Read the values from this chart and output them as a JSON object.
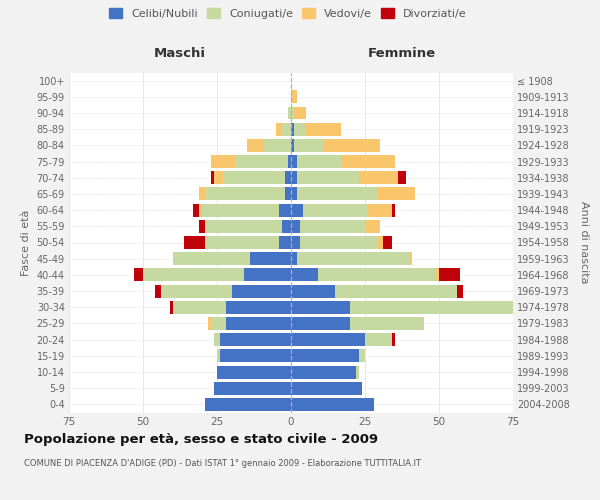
{
  "age_groups": [
    "0-4",
    "5-9",
    "10-14",
    "15-19",
    "20-24",
    "25-29",
    "30-34",
    "35-39",
    "40-44",
    "45-49",
    "50-54",
    "55-59",
    "60-64",
    "65-69",
    "70-74",
    "75-79",
    "80-84",
    "85-89",
    "90-94",
    "95-99",
    "100+"
  ],
  "birth_years": [
    "2004-2008",
    "1999-2003",
    "1994-1998",
    "1989-1993",
    "1984-1988",
    "1979-1983",
    "1974-1978",
    "1969-1973",
    "1964-1968",
    "1959-1963",
    "1954-1958",
    "1949-1953",
    "1944-1948",
    "1939-1943",
    "1934-1938",
    "1929-1933",
    "1924-1928",
    "1919-1923",
    "1914-1918",
    "1909-1913",
    "≤ 1908"
  ],
  "male_celibe": [
    29,
    26,
    25,
    24,
    24,
    22,
    22,
    20,
    16,
    14,
    4,
    3,
    4,
    2,
    2,
    1,
    0,
    0,
    0,
    0,
    0
  ],
  "male_coniugato": [
    0,
    0,
    0,
    1,
    2,
    5,
    18,
    24,
    34,
    26,
    25,
    26,
    26,
    27,
    21,
    18,
    9,
    3,
    1,
    0,
    0
  ],
  "male_vedovo": [
    0,
    0,
    0,
    0,
    0,
    1,
    0,
    0,
    0,
    0,
    0,
    0,
    1,
    2,
    3,
    8,
    6,
    2,
    0,
    0,
    0
  ],
  "male_divorziato": [
    0,
    0,
    0,
    0,
    0,
    0,
    1,
    2,
    3,
    0,
    7,
    2,
    2,
    0,
    1,
    0,
    0,
    0,
    0,
    0,
    0
  ],
  "female_nubile": [
    28,
    24,
    22,
    23,
    25,
    20,
    20,
    15,
    9,
    2,
    3,
    3,
    4,
    2,
    2,
    2,
    1,
    1,
    0,
    0,
    0
  ],
  "female_coniugata": [
    0,
    0,
    1,
    2,
    9,
    25,
    55,
    41,
    40,
    38,
    26,
    22,
    22,
    27,
    21,
    15,
    10,
    4,
    1,
    0,
    0
  ],
  "female_vedova": [
    0,
    0,
    0,
    0,
    0,
    0,
    1,
    0,
    1,
    1,
    2,
    5,
    8,
    13,
    13,
    18,
    19,
    12,
    4,
    2,
    0
  ],
  "female_divorziata": [
    0,
    0,
    0,
    0,
    1,
    0,
    0,
    2,
    7,
    0,
    3,
    0,
    1,
    0,
    3,
    0,
    0,
    0,
    0,
    0,
    0
  ],
  "col_celibe": "#4472c4",
  "col_coniugato": "#c6d9a0",
  "col_vedovo": "#f9c66b",
  "col_divorziato": "#c0000b",
  "xlim": 75,
  "title": "Popolazione per età, sesso e stato civile - 2009",
  "subtitle": "COMUNE DI PIACENZA D'ADIGE (PD) - Dati ISTAT 1° gennaio 2009 - Elaborazione TUTTITALIA.IT",
  "bg_color": "#f2f2f2",
  "plot_bg": "#ffffff"
}
